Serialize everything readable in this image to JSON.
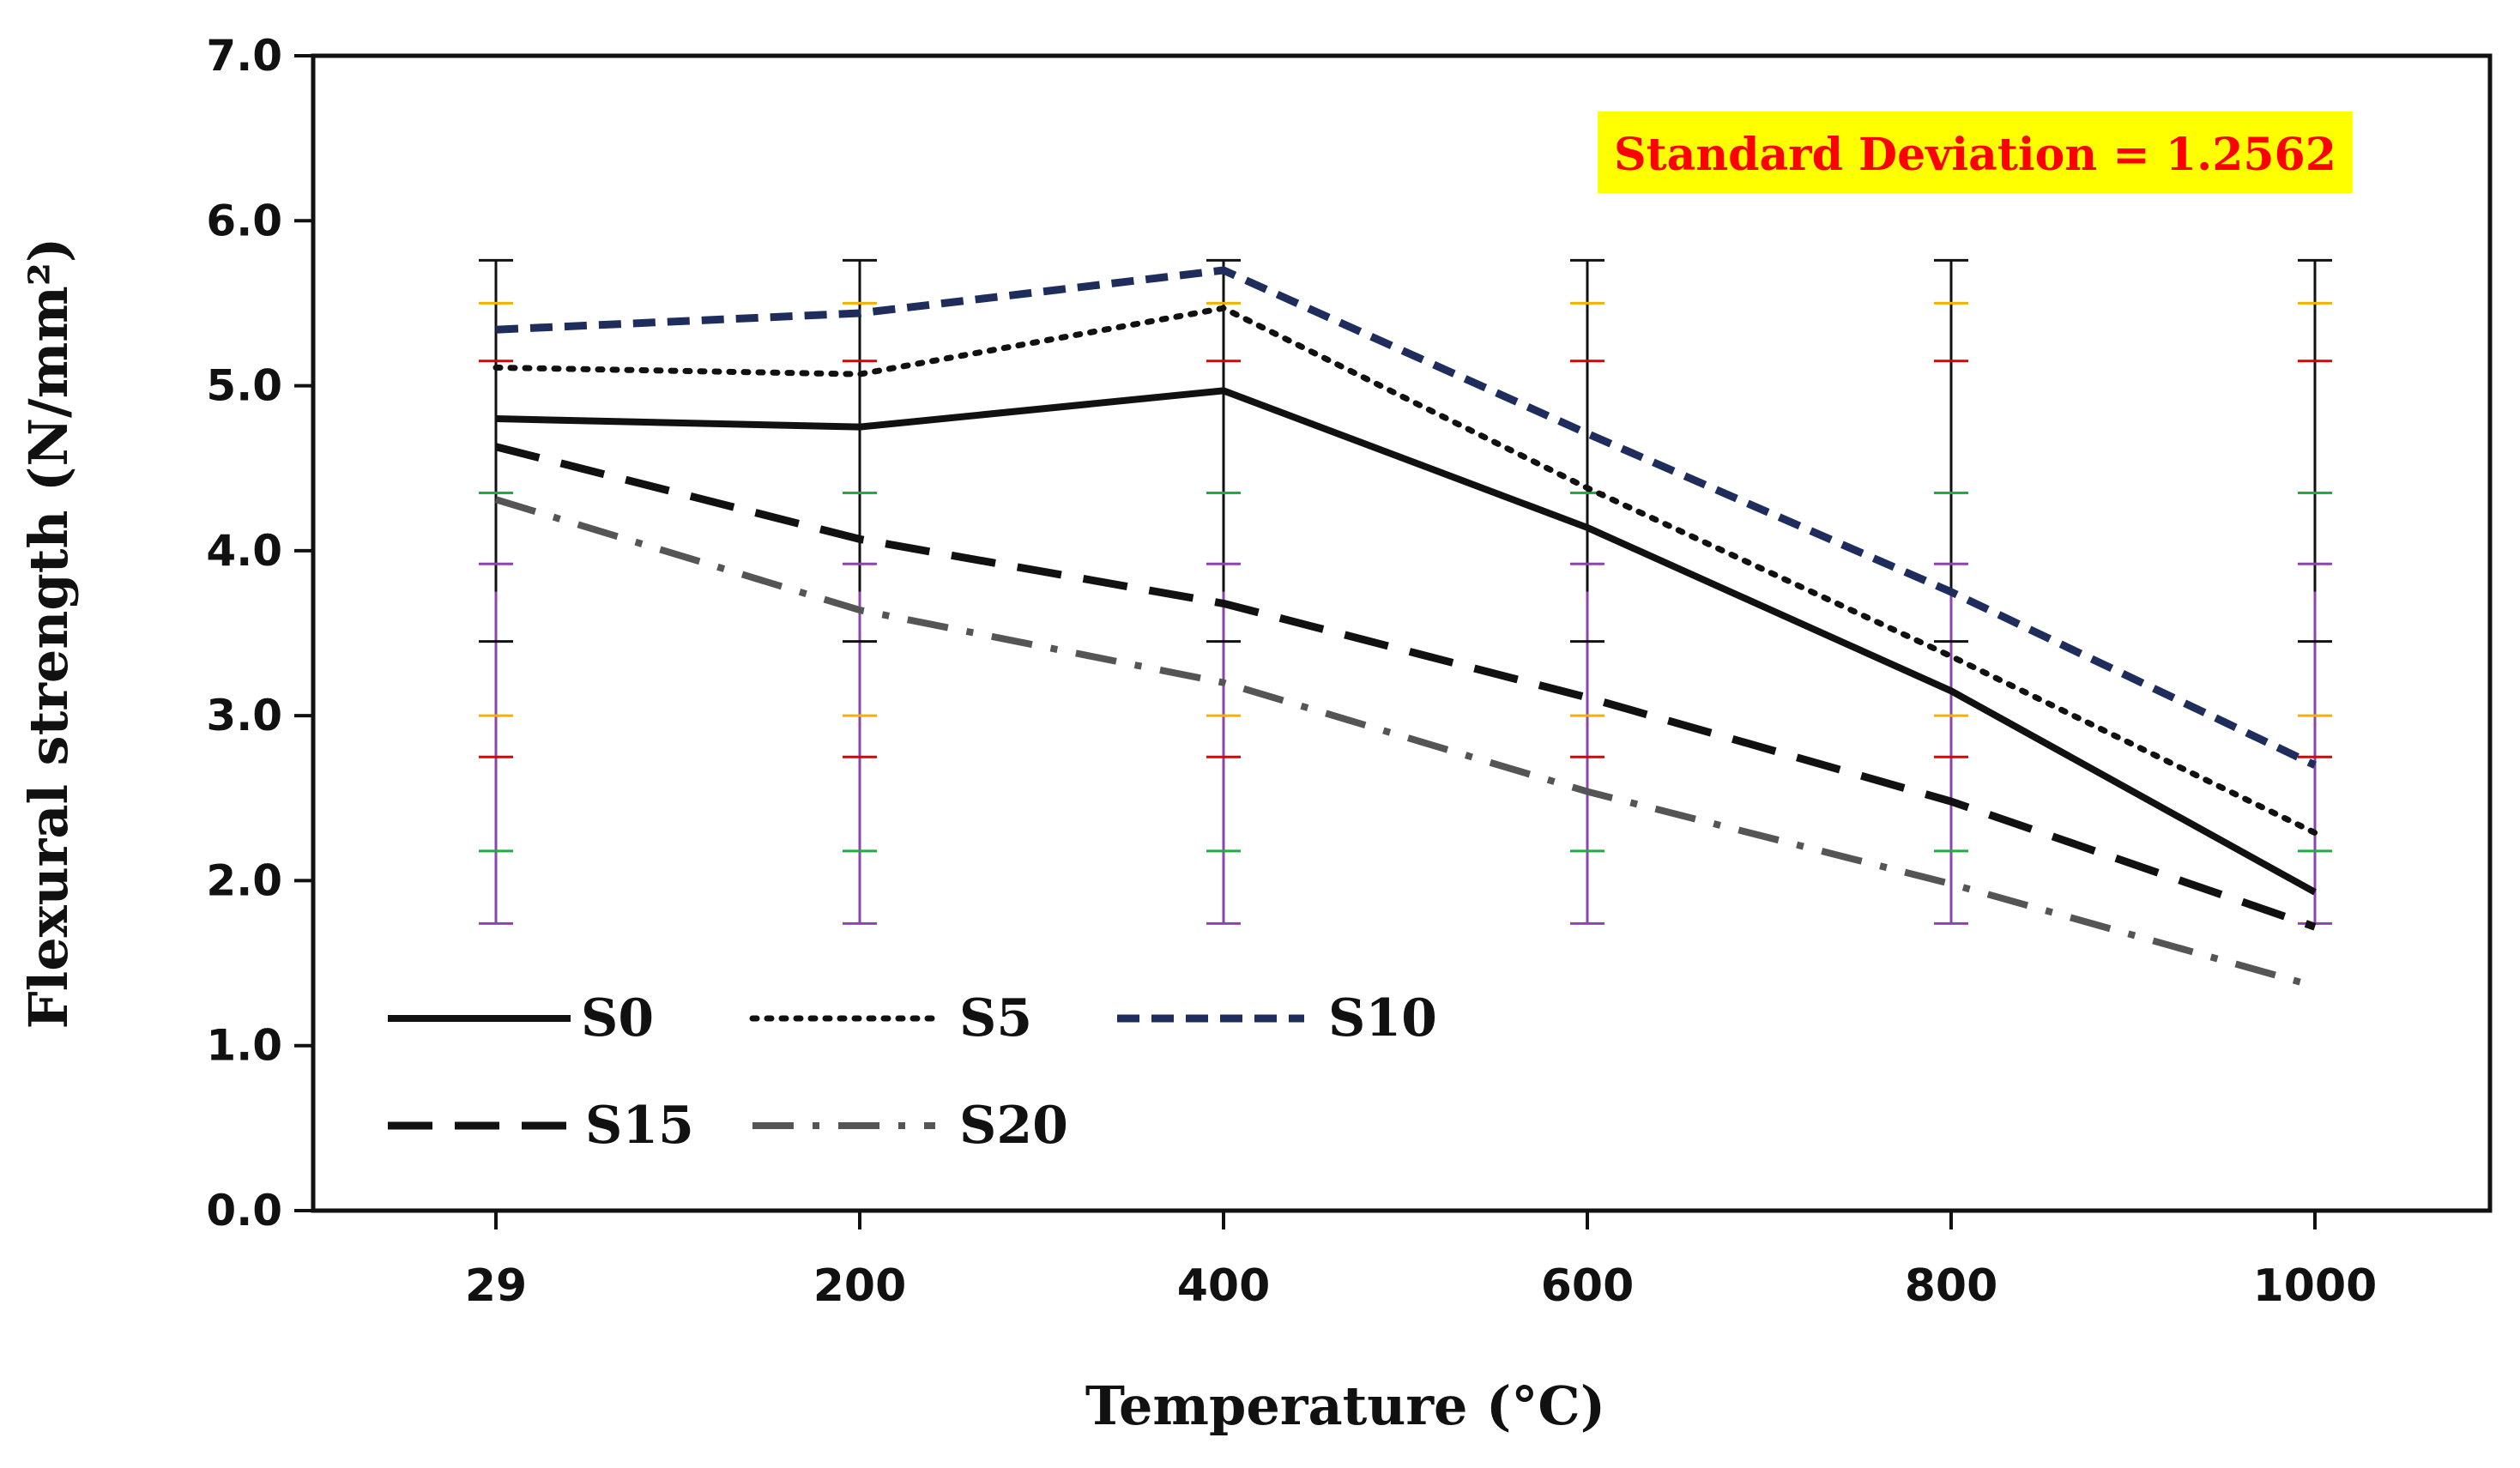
{
  "chart_data": {
    "type": "line",
    "xlabel": "Temperature (°C)",
    "ylabel": "Flexural strength (N/mm²)",
    "categories": [
      "29",
      "200",
      "400",
      "600",
      "800",
      "1000"
    ],
    "ylim": [
      0,
      7
    ],
    "yticks": [
      "0.0",
      "1.0",
      "2.0",
      "3.0",
      "4.0",
      "5.0",
      "6.0",
      "7.0"
    ],
    "series": [
      {
        "name": "S0",
        "values": [
          4.8,
          4.75,
          4.97,
          4.14,
          3.15,
          1.93
        ],
        "color": "#111111",
        "style": "solid"
      },
      {
        "name": "S5",
        "values": [
          5.11,
          5.07,
          5.47,
          4.38,
          3.36,
          2.29
        ],
        "color": "#111111",
        "style": "dotted"
      },
      {
        "name": "S10",
        "values": [
          5.34,
          5.44,
          5.7,
          4.71,
          3.75,
          2.7
        ],
        "color": "#1f2d5c",
        "style": "dashed"
      },
      {
        "name": "S15",
        "values": [
          4.63,
          4.07,
          3.68,
          3.11,
          2.48,
          1.72
        ],
        "color": "#111111",
        "style": "long-dashed"
      },
      {
        "name": "S20",
        "values": [
          4.31,
          3.64,
          3.2,
          2.54,
          1.98,
          1.36
        ],
        "color": "#555555",
        "style": "dash-dot"
      }
    ],
    "error_bars": {
      "low": 1.74,
      "high": 5.76,
      "tick_levels": [
        {
          "value": 5.76,
          "color": "#111111"
        },
        {
          "value": 5.5,
          "color": "#f2b300"
        },
        {
          "value": 5.15,
          "color": "#e00000"
        },
        {
          "value": 4.35,
          "color": "#22aa44"
        },
        {
          "value": 3.92,
          "color": "#8e44ad"
        },
        {
          "value": 3.45,
          "color": "#111111"
        },
        {
          "value": 3.0,
          "color": "#f2b300"
        },
        {
          "value": 2.75,
          "color": "#e00000"
        },
        {
          "value": 2.18,
          "color": "#22aa44"
        },
        {
          "value": 1.74,
          "color": "#8e44ad"
        }
      ],
      "upper_color": "#111111",
      "lower_color": "#8e44ad"
    },
    "annotation": {
      "text": "Standard Deviation = 1.2562",
      "text_color": "#ff0000",
      "background": "#ffff00"
    },
    "legend_position": "bottom-left",
    "grid": false
  }
}
